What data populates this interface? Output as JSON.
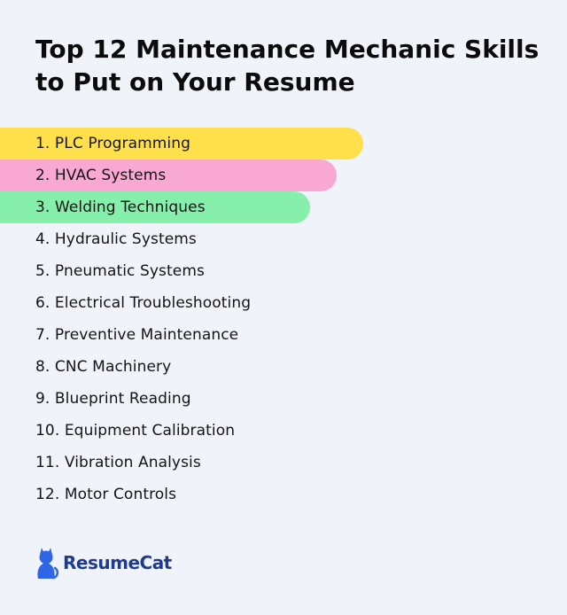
{
  "title": "Top 12 Maintenance Mechanic Skills to Put on Your Resume",
  "colors": {
    "background": "#f0f3f9",
    "highlight_1": "#ffe04a",
    "highlight_2": "#f9a8d4",
    "highlight_3": "#86efac",
    "brand": "#1f3b8f",
    "brand_icon": "#2f66e8"
  },
  "skills": [
    {
      "label": "1. PLC Programming"
    },
    {
      "label": "2. HVAC Systems"
    },
    {
      "label": "3. Welding Techniques"
    },
    {
      "label": "4. Hydraulic Systems"
    },
    {
      "label": "5. Pneumatic Systems"
    },
    {
      "label": "6. Electrical Troubleshooting"
    },
    {
      "label": "7. Preventive Maintenance"
    },
    {
      "label": "8. CNC Machinery"
    },
    {
      "label": "9. Blueprint Reading"
    },
    {
      "label": "10. Equipment Calibration"
    },
    {
      "label": "11. Vibration Analysis"
    },
    {
      "label": "12. Motor Controls"
    }
  ],
  "logo": {
    "text": "ResumeCat",
    "icon": "cat-icon"
  }
}
